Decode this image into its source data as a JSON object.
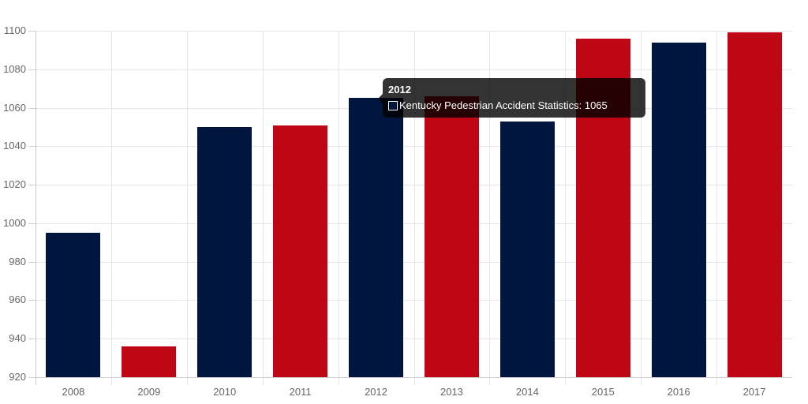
{
  "chart_data": {
    "type": "bar",
    "title": "",
    "xlabel": "",
    "ylabel": "",
    "ylim": [
      920,
      1100
    ],
    "yticks": [
      920,
      940,
      960,
      980,
      1000,
      1020,
      1040,
      1060,
      1080,
      1100
    ],
    "grid": true,
    "legend": null,
    "categories": [
      "2008",
      "2009",
      "2010",
      "2011",
      "2012",
      "2013",
      "2014",
      "2015",
      "2016",
      "2017"
    ],
    "series": [
      {
        "name": "Kentucky Pedestrian Accident Statistics",
        "values": [
          995,
          936,
          1050,
          1051,
          1065,
          1066,
          1053,
          1096,
          1094,
          1099
        ],
        "colors": [
          "#00163f",
          "#bf0615",
          "#00163f",
          "#bf0615",
          "#00163f",
          "#bf0615",
          "#00163f",
          "#bf0615",
          "#00163f",
          "#bf0615"
        ]
      }
    ]
  },
  "tooltip": {
    "title": "2012",
    "label": "Kentucky Pedestrian Accident Statistics: 1065"
  },
  "colors": {
    "navy": "#00163f",
    "red": "#bf0615"
  }
}
